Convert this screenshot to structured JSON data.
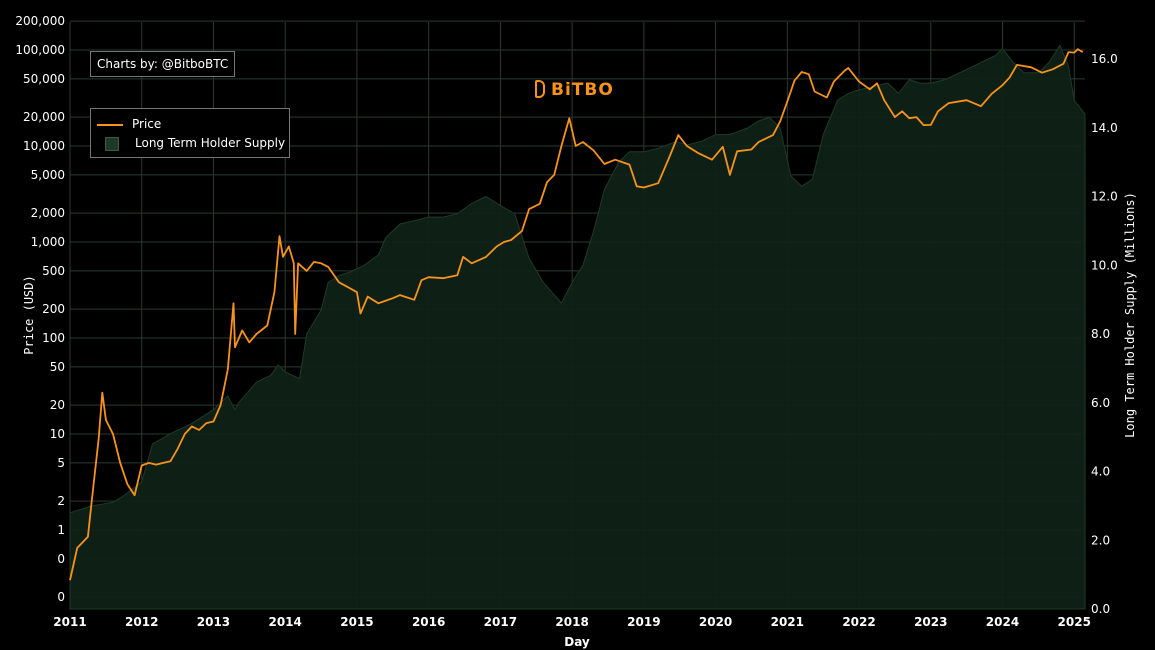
{
  "credit": "Charts by: @BitboBTC",
  "logo": "BiTBO",
  "colors": {
    "price": "#f7931a",
    "supply_fill": "#0f2217",
    "grid": "#2a3a30",
    "background": "#000000"
  },
  "chart_data": {
    "type": "line",
    "xlabel": "Day",
    "ylabel_left": "Price (USD)",
    "ylabel_right": "Long Term Holder Supply (Millions)",
    "x_ticks": [
      "2011",
      "2012",
      "2013",
      "2014",
      "2015",
      "2016",
      "2017",
      "2018",
      "2019",
      "2020",
      "2021",
      "2022",
      "2023",
      "2024",
      "2025"
    ],
    "y_left_ticks": [
      "200,000",
      "100,000",
      "50,000",
      "20,000",
      "10,000",
      "5,000",
      "2,000",
      "1,000",
      "500",
      "200",
      "100",
      "50",
      "20",
      "10",
      "5",
      "2",
      "1",
      "0",
      "0"
    ],
    "y_right_ticks": [
      "16.0",
      "14.0",
      "12.0",
      "10.0",
      "8.0",
      "6.0",
      "4.0",
      "2.0",
      "0.0"
    ],
    "y_left_scale": "log",
    "y_right_range": [
      0,
      16.0
    ],
    "grid": true,
    "legend_position": "top-left",
    "series": [
      {
        "name": "Price",
        "axis": "left",
        "points": [
          [
            2011.0,
            0.3
          ],
          [
            2011.1,
            0.65
          ],
          [
            2011.25,
            0.85
          ],
          [
            2011.3,
            1.9
          ],
          [
            2011.4,
            9
          ],
          [
            2011.45,
            27
          ],
          [
            2011.5,
            14
          ],
          [
            2011.6,
            10
          ],
          [
            2011.7,
            5
          ],
          [
            2011.8,
            3
          ],
          [
            2011.9,
            2.3
          ],
          [
            2012.0,
            4.7
          ],
          [
            2012.1,
            5
          ],
          [
            2012.2,
            4.8
          ],
          [
            2012.3,
            5
          ],
          [
            2012.4,
            5.2
          ],
          [
            2012.5,
            7
          ],
          [
            2012.6,
            10
          ],
          [
            2012.7,
            12
          ],
          [
            2012.8,
            11
          ],
          [
            2012.9,
            13
          ],
          [
            2013.0,
            13.5
          ],
          [
            2013.1,
            20
          ],
          [
            2013.2,
            47
          ],
          [
            2013.28,
            230
          ],
          [
            2013.3,
            80
          ],
          [
            2013.4,
            120
          ],
          [
            2013.5,
            90
          ],
          [
            2013.6,
            110
          ],
          [
            2013.75,
            135
          ],
          [
            2013.85,
            300
          ],
          [
            2013.92,
            1150
          ],
          [
            2013.97,
            700
          ],
          [
            2014.05,
            900
          ],
          [
            2014.12,
            600
          ],
          [
            2014.14,
            110
          ],
          [
            2014.18,
            600
          ],
          [
            2014.3,
            500
          ],
          [
            2014.4,
            620
          ],
          [
            2014.5,
            600
          ],
          [
            2014.6,
            550
          ],
          [
            2014.75,
            380
          ],
          [
            2014.9,
            330
          ],
          [
            2015.0,
            300
          ],
          [
            2015.05,
            180
          ],
          [
            2015.15,
            270
          ],
          [
            2015.3,
            230
          ],
          [
            2015.5,
            260
          ],
          [
            2015.6,
            280
          ],
          [
            2015.8,
            250
          ],
          [
            2015.9,
            400
          ],
          [
            2016.0,
            430
          ],
          [
            2016.2,
            420
          ],
          [
            2016.4,
            450
          ],
          [
            2016.48,
            700
          ],
          [
            2016.6,
            600
          ],
          [
            2016.8,
            700
          ],
          [
            2016.95,
            900
          ],
          [
            2017.05,
            1000
          ],
          [
            2017.15,
            1050
          ],
          [
            2017.3,
            1300
          ],
          [
            2017.4,
            2200
          ],
          [
            2017.55,
            2500
          ],
          [
            2017.65,
            4200
          ],
          [
            2017.75,
            5000
          ],
          [
            2017.85,
            10000
          ],
          [
            2017.96,
            19500
          ],
          [
            2018.05,
            10000
          ],
          [
            2018.15,
            11000
          ],
          [
            2018.3,
            9000
          ],
          [
            2018.45,
            6500
          ],
          [
            2018.6,
            7200
          ],
          [
            2018.8,
            6400
          ],
          [
            2018.9,
            3800
          ],
          [
            2019.0,
            3700
          ],
          [
            2019.2,
            4100
          ],
          [
            2019.35,
            7500
          ],
          [
            2019.48,
            13000
          ],
          [
            2019.6,
            10000
          ],
          [
            2019.75,
            8500
          ],
          [
            2019.95,
            7200
          ],
          [
            2020.1,
            9800
          ],
          [
            2020.2,
            5000
          ],
          [
            2020.3,
            8800
          ],
          [
            2020.5,
            9200
          ],
          [
            2020.6,
            11000
          ],
          [
            2020.8,
            13000
          ],
          [
            2020.9,
            18000
          ],
          [
            2021.0,
            29000
          ],
          [
            2021.1,
            48000
          ],
          [
            2021.2,
            59000
          ],
          [
            2021.3,
            56000
          ],
          [
            2021.38,
            37000
          ],
          [
            2021.55,
            32000
          ],
          [
            2021.65,
            47000
          ],
          [
            2021.8,
            61000
          ],
          [
            2021.85,
            65000
          ],
          [
            2022.0,
            47000
          ],
          [
            2022.15,
            39000
          ],
          [
            2022.25,
            45000
          ],
          [
            2022.35,
            30000
          ],
          [
            2022.5,
            20000
          ],
          [
            2022.6,
            23000
          ],
          [
            2022.7,
            19500
          ],
          [
            2022.8,
            20000
          ],
          [
            2022.9,
            16500
          ],
          [
            2023.0,
            16600
          ],
          [
            2023.1,
            23000
          ],
          [
            2023.25,
            28000
          ],
          [
            2023.5,
            30000
          ],
          [
            2023.7,
            26000
          ],
          [
            2023.85,
            35000
          ],
          [
            2024.0,
            43000
          ],
          [
            2024.1,
            52000
          ],
          [
            2024.2,
            70000
          ],
          [
            2024.4,
            66000
          ],
          [
            2024.55,
            58000
          ],
          [
            2024.7,
            63000
          ],
          [
            2024.85,
            72000
          ],
          [
            2024.92,
            95000
          ],
          [
            2025.0,
            94000
          ],
          [
            2025.05,
            102000
          ],
          [
            2025.12,
            95000
          ]
        ]
      },
      {
        "name": "Long Term Holder Supply",
        "axis": "right",
        "points": [
          [
            2011.0,
            2.8
          ],
          [
            2011.3,
            3.0
          ],
          [
            2011.6,
            3.1
          ],
          [
            2011.75,
            3.3
          ],
          [
            2012.0,
            3.7
          ],
          [
            2012.15,
            4.8
          ],
          [
            2012.4,
            5.1
          ],
          [
            2012.7,
            5.4
          ],
          [
            2013.0,
            5.8
          ],
          [
            2013.2,
            6.2
          ],
          [
            2013.3,
            5.8
          ],
          [
            2013.35,
            6.0
          ],
          [
            2013.6,
            6.6
          ],
          [
            2013.8,
            6.8
          ],
          [
            2013.9,
            7.1
          ],
          [
            2014.0,
            6.9
          ],
          [
            2014.1,
            6.8
          ],
          [
            2014.2,
            6.7
          ],
          [
            2014.3,
            8.0
          ],
          [
            2014.5,
            8.7
          ],
          [
            2014.6,
            9.5
          ],
          [
            2014.75,
            9.7
          ],
          [
            2014.9,
            9.8
          ],
          [
            2015.1,
            10.0
          ],
          [
            2015.3,
            10.3
          ],
          [
            2015.4,
            10.8
          ],
          [
            2015.6,
            11.2
          ],
          [
            2015.8,
            11.3
          ],
          [
            2016.0,
            11.4
          ],
          [
            2016.2,
            11.4
          ],
          [
            2016.4,
            11.5
          ],
          [
            2016.6,
            11.8
          ],
          [
            2016.8,
            12.0
          ],
          [
            2016.95,
            11.8
          ],
          [
            2017.2,
            11.5
          ],
          [
            2017.4,
            10.2
          ],
          [
            2017.6,
            9.5
          ],
          [
            2017.85,
            8.9
          ],
          [
            2018.0,
            9.5
          ],
          [
            2018.15,
            10.0
          ],
          [
            2018.3,
            11.0
          ],
          [
            2018.45,
            12.2
          ],
          [
            2018.65,
            13.0
          ],
          [
            2018.8,
            13.3
          ],
          [
            2019.0,
            13.3
          ],
          [
            2019.2,
            13.4
          ],
          [
            2019.45,
            13.6
          ],
          [
            2019.6,
            13.5
          ],
          [
            2019.8,
            13.6
          ],
          [
            2020.0,
            13.8
          ],
          [
            2020.2,
            13.8
          ],
          [
            2020.45,
            14.0
          ],
          [
            2020.6,
            14.2
          ],
          [
            2020.75,
            14.3
          ],
          [
            2020.9,
            14.0
          ],
          [
            2021.05,
            12.6
          ],
          [
            2021.2,
            12.3
          ],
          [
            2021.35,
            12.5
          ],
          [
            2021.5,
            13.8
          ],
          [
            2021.7,
            14.8
          ],
          [
            2021.85,
            15.0
          ],
          [
            2022.0,
            15.1
          ],
          [
            2022.2,
            15.2
          ],
          [
            2022.4,
            15.3
          ],
          [
            2022.55,
            15.0
          ],
          [
            2022.7,
            15.4
          ],
          [
            2022.85,
            15.3
          ],
          [
            2023.0,
            15.3
          ],
          [
            2023.2,
            15.4
          ],
          [
            2023.4,
            15.6
          ],
          [
            2023.6,
            15.8
          ],
          [
            2023.8,
            16.0
          ],
          [
            2023.9,
            16.1
          ],
          [
            2024.0,
            16.3
          ],
          [
            2024.15,
            15.9
          ],
          [
            2024.3,
            15.6
          ],
          [
            2024.5,
            15.6
          ],
          [
            2024.65,
            15.9
          ],
          [
            2024.8,
            16.4
          ],
          [
            2024.92,
            15.8
          ],
          [
            2025.0,
            14.8
          ],
          [
            2025.15,
            14.4
          ]
        ]
      }
    ]
  }
}
